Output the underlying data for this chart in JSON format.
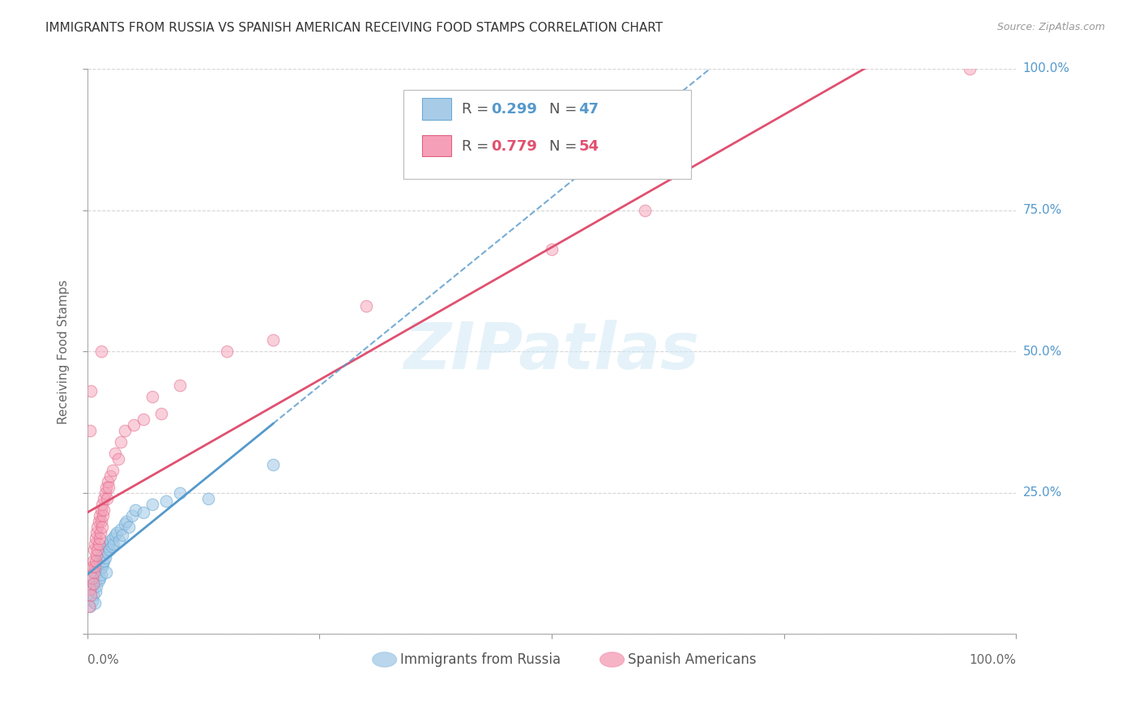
{
  "title": "IMMIGRANTS FROM RUSSIA VS SPANISH AMERICAN RECEIVING FOOD STAMPS CORRELATION CHART",
  "source": "Source: ZipAtlas.com",
  "ylabel": "Receiving Food Stamps",
  "watermark": "ZIPatlas",
  "color_russia": "#a8cce8",
  "color_russia_edge": "#6aaad4",
  "color_russia_line": "#5599cc",
  "color_spanish": "#f5a0b8",
  "color_spanish_edge": "#e06080",
  "color_spanish_line": "#e05070",
  "background_color": "#ffffff",
  "grid_color": "#cccccc",
  "title_fontsize": 11,
  "source_fontsize": 9,
  "russia_x": [
    0.003,
    0.005,
    0.005,
    0.006,
    0.007,
    0.008,
    0.008,
    0.009,
    0.01,
    0.01,
    0.011,
    0.012,
    0.012,
    0.013,
    0.014,
    0.015,
    0.015,
    0.016,
    0.017,
    0.018,
    0.019,
    0.02,
    0.02,
    0.021,
    0.022,
    0.023,
    0.024,
    0.025,
    0.026,
    0.027,
    0.028,
    0.03,
    0.032,
    0.034,
    0.036,
    0.038,
    0.04,
    0.042,
    0.045,
    0.048,
    0.052,
    0.06,
    0.07,
    0.085,
    0.1,
    0.13,
    0.2
  ],
  "russia_y": [
    0.05,
    0.06,
    0.08,
    0.07,
    0.09,
    0.055,
    0.1,
    0.075,
    0.11,
    0.085,
    0.12,
    0.095,
    0.13,
    0.1,
    0.115,
    0.105,
    0.14,
    0.12,
    0.125,
    0.13,
    0.135,
    0.15,
    0.11,
    0.145,
    0.155,
    0.16,
    0.15,
    0.165,
    0.155,
    0.17,
    0.16,
    0.175,
    0.18,
    0.165,
    0.185,
    0.175,
    0.195,
    0.2,
    0.19,
    0.21,
    0.22,
    0.215,
    0.23,
    0.235,
    0.25,
    0.24,
    0.3
  ],
  "spanish_x": [
    0.002,
    0.003,
    0.004,
    0.005,
    0.005,
    0.006,
    0.006,
    0.007,
    0.007,
    0.008,
    0.008,
    0.009,
    0.009,
    0.01,
    0.01,
    0.011,
    0.011,
    0.012,
    0.012,
    0.013,
    0.013,
    0.014,
    0.015,
    0.015,
    0.016,
    0.016,
    0.017,
    0.018,
    0.018,
    0.019,
    0.02,
    0.021,
    0.022,
    0.023,
    0.025,
    0.027,
    0.03,
    0.033,
    0.036,
    0.04,
    0.05,
    0.06,
    0.07,
    0.08,
    0.1,
    0.15,
    0.2,
    0.3,
    0.5,
    0.6,
    0.003,
    0.004,
    0.015,
    0.95
  ],
  "spanish_y": [
    0.05,
    0.08,
    0.07,
    0.1,
    0.12,
    0.09,
    0.13,
    0.11,
    0.15,
    0.12,
    0.16,
    0.13,
    0.17,
    0.14,
    0.18,
    0.15,
    0.19,
    0.16,
    0.2,
    0.17,
    0.21,
    0.18,
    0.2,
    0.22,
    0.19,
    0.23,
    0.21,
    0.24,
    0.22,
    0.25,
    0.26,
    0.24,
    0.27,
    0.26,
    0.28,
    0.29,
    0.32,
    0.31,
    0.34,
    0.36,
    0.37,
    0.38,
    0.42,
    0.39,
    0.44,
    0.5,
    0.52,
    0.58,
    0.68,
    0.75,
    0.36,
    0.43,
    0.5,
    1.0
  ],
  "ytick_positions": [
    0.0,
    0.25,
    0.5,
    0.75,
    1.0
  ],
  "ytick_right_labels": [
    "25.0%",
    "50.0%",
    "75.0%",
    "100.0%"
  ],
  "xlim": [
    0,
    1.0
  ],
  "ylim": [
    0,
    1.0
  ]
}
